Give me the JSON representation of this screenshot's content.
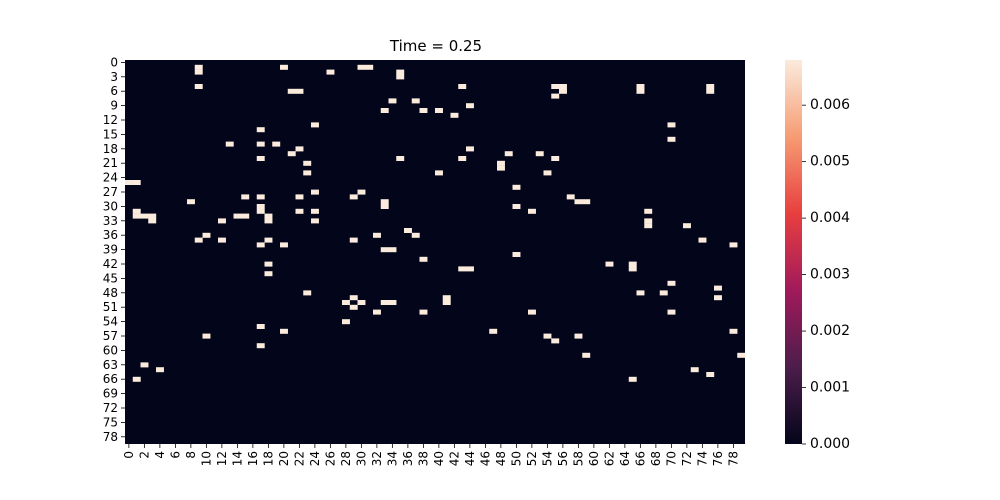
{
  "chart_data": {
    "type": "heatmap",
    "title": "Time = 0.25",
    "xlabel": "",
    "ylabel": "",
    "n_rows": 80,
    "n_cols": 80,
    "x_ticks": [
      0,
      2,
      4,
      6,
      8,
      10,
      12,
      14,
      16,
      18,
      20,
      22,
      24,
      26,
      28,
      30,
      32,
      34,
      36,
      38,
      40,
      42,
      44,
      46,
      48,
      50,
      52,
      54,
      56,
      58,
      60,
      62,
      64,
      66,
      68,
      70,
      72,
      74,
      76,
      78
    ],
    "y_ticks": [
      0,
      3,
      6,
      9,
      12,
      15,
      18,
      21,
      24,
      27,
      30,
      33,
      36,
      39,
      42,
      45,
      48,
      51,
      54,
      57,
      60,
      63,
      66,
      69,
      72,
      75,
      78
    ],
    "colorbar": {
      "min": 0.0,
      "max": 0.0068,
      "ticks": [
        "0.000",
        "0.001",
        "0.002",
        "0.003",
        "0.004",
        "0.005",
        "0.006"
      ],
      "colors": [
        "#03051a",
        "#4c1d4b",
        "#a11a5b",
        "#e83f3f",
        "#f69c73",
        "#faebdd"
      ]
    },
    "value_default": 0.0,
    "value_highlight": 0.0068,
    "cells": [
      [
        1,
        9
      ],
      [
        2,
        9
      ],
      [
        1,
        20
      ],
      [
        1,
        30
      ],
      [
        1,
        31
      ],
      [
        2,
        26
      ],
      [
        2,
        35
      ],
      [
        3,
        35
      ],
      [
        5,
        9
      ],
      [
        5,
        43
      ],
      [
        5,
        56
      ],
      [
        5,
        55
      ],
      [
        5,
        66
      ],
      [
        5,
        75
      ],
      [
        6,
        22
      ],
      [
        6,
        21
      ],
      [
        6,
        56
      ],
      [
        6,
        66
      ],
      [
        6,
        75
      ],
      [
        7,
        55
      ],
      [
        8,
        34
      ],
      [
        8,
        37
      ],
      [
        9,
        44
      ],
      [
        10,
        33
      ],
      [
        10,
        38
      ],
      [
        10,
        40
      ],
      [
        11,
        42
      ],
      [
        13,
        24
      ],
      [
        13,
        70
      ],
      [
        14,
        17
      ],
      [
        16,
        70
      ],
      [
        17,
        13
      ],
      [
        17,
        17
      ],
      [
        17,
        19
      ],
      [
        18,
        22
      ],
      [
        18,
        44
      ],
      [
        19,
        21
      ],
      [
        19,
        49
      ],
      [
        19,
        53
      ],
      [
        20,
        35
      ],
      [
        20,
        43
      ],
      [
        20,
        17
      ],
      [
        20,
        55
      ],
      [
        21,
        23
      ],
      [
        21,
        48
      ],
      [
        22,
        48
      ],
      [
        23,
        23
      ],
      [
        23,
        40
      ],
      [
        23,
        54
      ],
      [
        25,
        0
      ],
      [
        25,
        1
      ],
      [
        26,
        50
      ],
      [
        27,
        30
      ],
      [
        27,
        24
      ],
      [
        28,
        15
      ],
      [
        28,
        17
      ],
      [
        28,
        22
      ],
      [
        28,
        29
      ],
      [
        28,
        57
      ],
      [
        29,
        8
      ],
      [
        29,
        58
      ],
      [
        29,
        59
      ],
      [
        29,
        33
      ],
      [
        30,
        17
      ],
      [
        30,
        33
      ],
      [
        30,
        50
      ],
      [
        31,
        1
      ],
      [
        31,
        17
      ],
      [
        31,
        22
      ],
      [
        31,
        24
      ],
      [
        31,
        52
      ],
      [
        31,
        67
      ],
      [
        32,
        1
      ],
      [
        32,
        2
      ],
      [
        32,
        3
      ],
      [
        32,
        14
      ],
      [
        32,
        15
      ],
      [
        32,
        18
      ],
      [
        33,
        3
      ],
      [
        33,
        12
      ],
      [
        33,
        18
      ],
      [
        33,
        24
      ],
      [
        33,
        67
      ],
      [
        34,
        67
      ],
      [
        34,
        72
      ],
      [
        35,
        36
      ],
      [
        36,
        10
      ],
      [
        36,
        32
      ],
      [
        36,
        37
      ],
      [
        37,
        9
      ],
      [
        37,
        12
      ],
      [
        37,
        18
      ],
      [
        37,
        29
      ],
      [
        37,
        74
      ],
      [
        38,
        17
      ],
      [
        38,
        20
      ],
      [
        38,
        78
      ],
      [
        39,
        33
      ],
      [
        39,
        34
      ],
      [
        40,
        50
      ],
      [
        41,
        38
      ],
      [
        42,
        18
      ],
      [
        42,
        65
      ],
      [
        42,
        62
      ],
      [
        43,
        44
      ],
      [
        43,
        43
      ],
      [
        43,
        65
      ],
      [
        44,
        18
      ],
      [
        46,
        70
      ],
      [
        47,
        76
      ],
      [
        48,
        23
      ],
      [
        48,
        66
      ],
      [
        48,
        69
      ],
      [
        49,
        29
      ],
      [
        49,
        41
      ],
      [
        49,
        76
      ],
      [
        50,
        28
      ],
      [
        50,
        33
      ],
      [
        50,
        34
      ],
      [
        50,
        30
      ],
      [
        50,
        41
      ],
      [
        51,
        29
      ],
      [
        52,
        32
      ],
      [
        52,
        38
      ],
      [
        52,
        52
      ],
      [
        52,
        70
      ],
      [
        54,
        28
      ],
      [
        55,
        17
      ],
      [
        56,
        20
      ],
      [
        56,
        47
      ],
      [
        56,
        78
      ],
      [
        57,
        10
      ],
      [
        57,
        54
      ],
      [
        57,
        58
      ],
      [
        58,
        55
      ],
      [
        59,
        17
      ],
      [
        61,
        59
      ],
      [
        63,
        2
      ],
      [
        64,
        4
      ],
      [
        64,
        73
      ],
      [
        65,
        75
      ],
      [
        66,
        1
      ],
      [
        66,
        65
      ],
      [
        61,
        79
      ]
    ]
  }
}
